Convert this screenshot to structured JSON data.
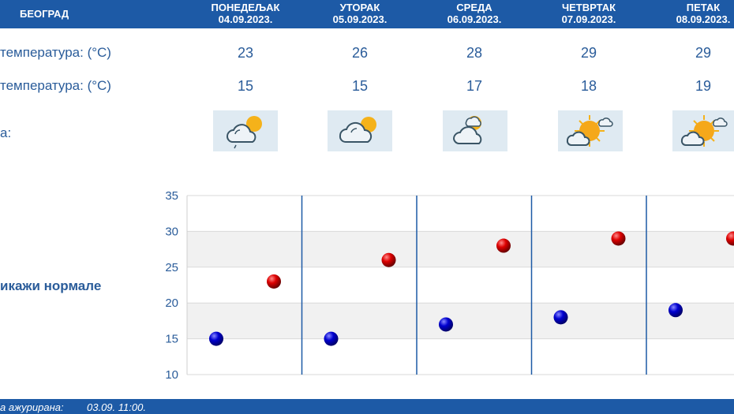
{
  "header": {
    "city": "БЕОГРАД",
    "days": [
      {
        "name": "ПОНЕДЕЉАК",
        "date": "04.09.2023."
      },
      {
        "name": "УТОРАК",
        "date": "05.09.2023."
      },
      {
        "name": "СРЕДА",
        "date": "06.09.2023."
      },
      {
        "name": "ЧЕТВРТАК",
        "date": "07.09.2023."
      },
      {
        "name": "ПЕТАК",
        "date": "08.09.2023."
      }
    ]
  },
  "rows": {
    "max_label": "температура: (°C)",
    "max_values": [
      "23",
      "26",
      "28",
      "29",
      "29"
    ],
    "min_label": "температура: (°C)",
    "min_values": [
      "15",
      "15",
      "17",
      "18",
      "19"
    ],
    "icon_label": "а:",
    "icons": [
      "partly-cloudy-rain-icon",
      "partly-cloudy-icon",
      "partly-cloudy-icon",
      "sunny-cloud-icon",
      "sunny-cloud-icon"
    ]
  },
  "normals_link": "икажи нормале",
  "footer": {
    "label": "а ажурирана:",
    "value": "03.09. 11:00."
  },
  "chart_data": {
    "type": "scatter",
    "title": "",
    "xlabel": "",
    "ylabel": "",
    "categories": [
      "04.09.2023.",
      "05.09.2023.",
      "06.09.2023.",
      "07.09.2023.",
      "08.09.2023."
    ],
    "ylim": [
      10,
      35
    ],
    "yticks": [
      10,
      15,
      20,
      25,
      30,
      35
    ],
    "grid": true,
    "series": [
      {
        "values": [
          23,
          26,
          28,
          29,
          29
        ],
        "color": "#cc0000"
      },
      {
        "values": [
          15,
          15,
          17,
          18,
          19
        ],
        "color": "#0000c0"
      }
    ]
  },
  "colors": {
    "header": "#1d5aa6",
    "text": "#2a5c9a",
    "band": "#f1f1f1",
    "divider": "#1d5aa6"
  }
}
